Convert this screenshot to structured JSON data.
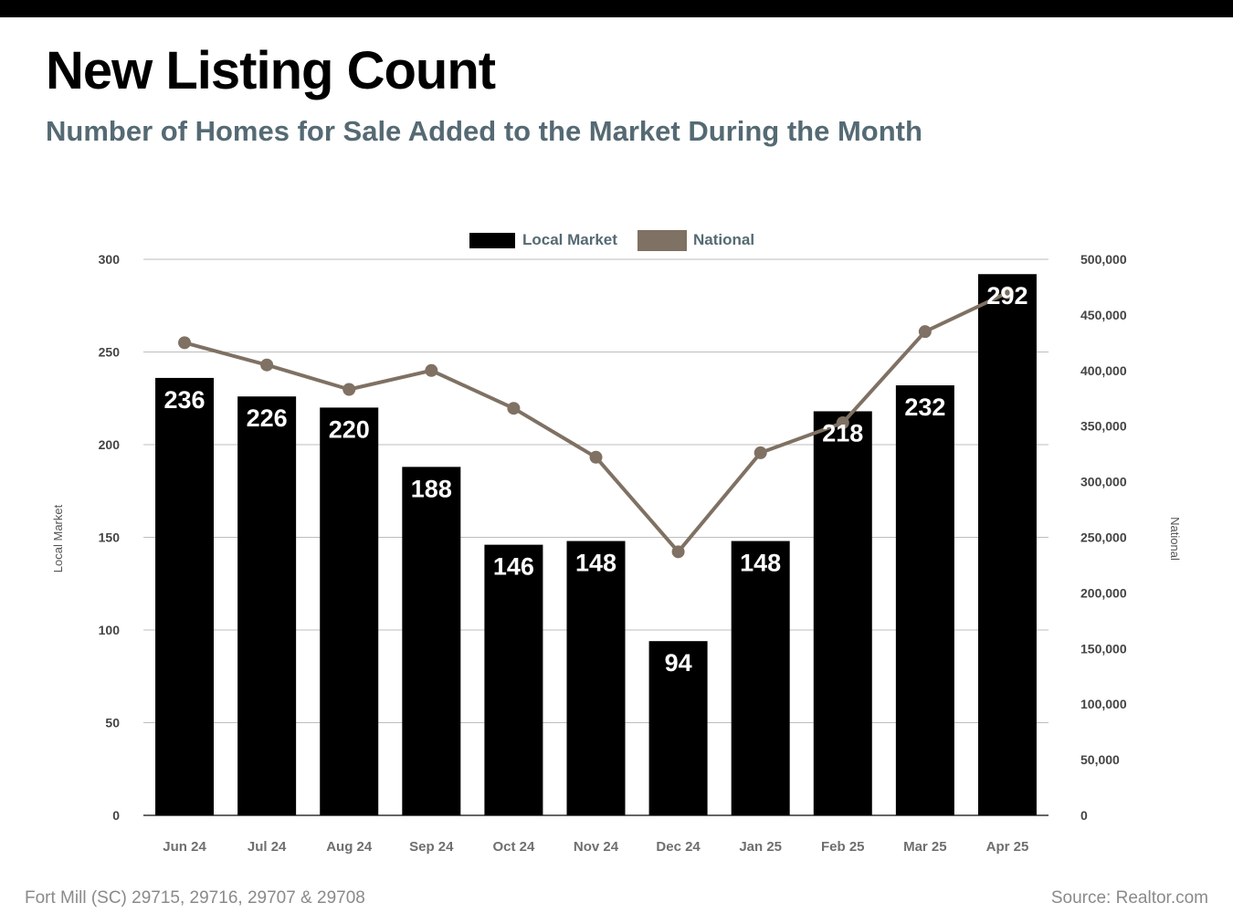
{
  "header": {
    "title": "New Listing Count",
    "subtitle": "Number of Homes for Sale Added to the Market During the Month"
  },
  "footer": {
    "location": "Fort Mill (SC) 29715, 29716, 29707 & 29708",
    "source": "Source: Realtor.com"
  },
  "colors": {
    "local_bar": "#000000",
    "national_line": "#7f7163",
    "subtitle": "#556a73",
    "grid": "#bdbdbd"
  },
  "chart_data": {
    "type": "bar",
    "categories": [
      "Jun 24",
      "Jul 24",
      "Aug 24",
      "Sep 24",
      "Oct 24",
      "Nov 24",
      "Dec 24",
      "Jan 25",
      "Feb 25",
      "Mar 25",
      "Apr 25"
    ],
    "series": [
      {
        "name": "Local Market",
        "type": "bar",
        "axis": "left",
        "values": [
          236,
          226,
          220,
          188,
          146,
          148,
          94,
          148,
          218,
          232,
          292
        ]
      },
      {
        "name": "National",
        "type": "line",
        "axis": "right",
        "values": [
          425000,
          405000,
          383000,
          400000,
          366000,
          322000,
          237000,
          326000,
          353000,
          435000,
          470000
        ]
      }
    ],
    "y_left": {
      "label": "Local Market",
      "ylim": [
        0,
        300
      ],
      "ticks": [
        "0",
        "50",
        "100",
        "150",
        "200",
        "250",
        "300"
      ]
    },
    "y_right": {
      "label": "National",
      "ylim": [
        0,
        500000
      ],
      "ticks": [
        "0",
        "50,000",
        "100,000",
        "150,000",
        "200,000",
        "250,000",
        "300,000",
        "350,000",
        "400,000",
        "450,000",
        "500,000"
      ]
    },
    "grid": true,
    "legend": "top-center"
  }
}
